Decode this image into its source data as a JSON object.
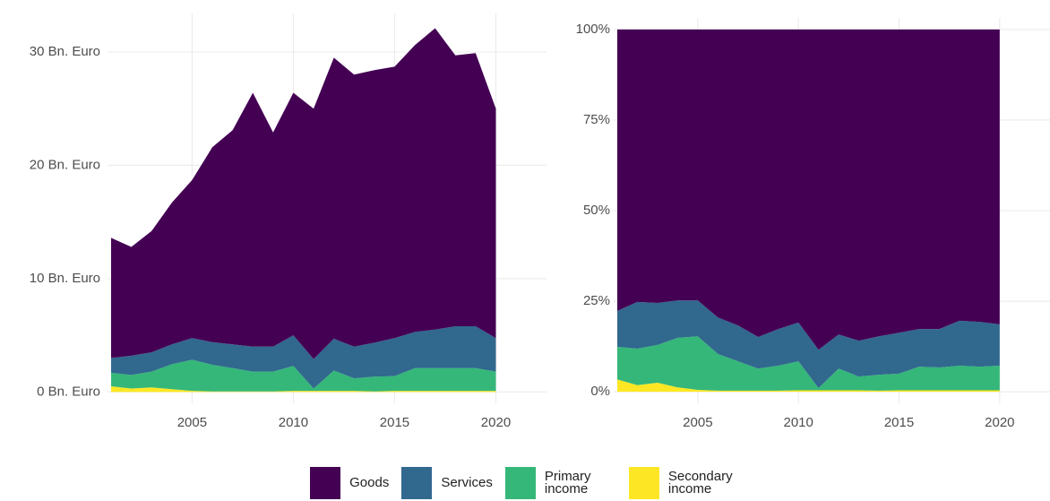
{
  "chart_data": [
    {
      "type": "stacked_area",
      "x": [
        2001,
        2002,
        2003,
        2004,
        2005,
        2006,
        2007,
        2008,
        2009,
        2010,
        2011,
        2012,
        2013,
        2014,
        2015,
        2016,
        2017,
        2018,
        2019,
        2020
      ],
      "series": [
        {
          "name": "Secondary income",
          "color": "#fde725",
          "values": [
            0.5,
            0.3,
            0.4,
            0.25,
            0.1,
            0.05,
            0.05,
            0.05,
            0.05,
            0.1,
            0.1,
            0.1,
            0.1,
            0.05,
            0.1,
            0.1,
            0.1,
            0.1,
            0.1,
            0.1
          ]
        },
        {
          "name": "Primary income",
          "color": "#35b779",
          "values": [
            1.2,
            1.2,
            1.4,
            2.2,
            2.75,
            2.35,
            2.05,
            1.75,
            1.75,
            2.2,
            0.2,
            1.8,
            1.1,
            1.3,
            1.3,
            2.0,
            2.0,
            2.0,
            2.0,
            1.7
          ]
        },
        {
          "name": "Services",
          "color": "#31688e",
          "values": [
            1.3,
            1.7,
            1.7,
            1.75,
            1.9,
            2.0,
            2.1,
            2.2,
            2.2,
            2.7,
            2.6,
            2.8,
            2.8,
            3.0,
            3.35,
            3.2,
            3.4,
            3.7,
            3.7,
            2.95
          ]
        },
        {
          "name": "Goods",
          "color": "#440154",
          "values": [
            10.6,
            9.6,
            10.7,
            12.5,
            13.95,
            17.2,
            18.9,
            22.4,
            18.9,
            21.4,
            22.1,
            24.8,
            24.0,
            24.05,
            23.95,
            25.3,
            26.6,
            23.9,
            24.1,
            20.25
          ]
        }
      ],
      "xlim": [
        2001,
        2022.5
      ],
      "xticks": [
        2005,
        2010,
        2015,
        2020
      ],
      "ylim": [
        -1,
        33.4
      ],
      "yticks": [
        {
          "value": 0,
          "label": "0 Bn. Euro"
        },
        {
          "value": 10,
          "label": "10 Bn. Euro"
        },
        {
          "value": 20,
          "label": "20 Bn. Euro"
        },
        {
          "value": 30,
          "label": "30 Bn. Euro"
        }
      ],
      "grid": true
    },
    {
      "type": "stacked_area",
      "x": [
        2001,
        2002,
        2003,
        2004,
        2005,
        2006,
        2007,
        2008,
        2009,
        2010,
        2011,
        2012,
        2013,
        2014,
        2015,
        2016,
        2017,
        2018,
        2019,
        2020
      ],
      "series": [
        {
          "name": "Secondary income",
          "color": "#fde725",
          "values": [
            3.4,
            1.8,
            2.5,
            1.2,
            0.5,
            0.3,
            0.3,
            0.3,
            0.3,
            0.4,
            0.4,
            0.4,
            0.4,
            0.3,
            0.4,
            0.4,
            0.4,
            0.4,
            0.4,
            0.4
          ]
        },
        {
          "name": "Primary income",
          "color": "#35b779",
          "values": [
            9.0,
            10.1,
            10.4,
            13.7,
            14.8,
            10.1,
            8.1,
            6.1,
            6.9,
            8.0,
            0.6,
            6.0,
            3.8,
            4.4,
            4.6,
            6.5,
            6.3,
            6.8,
            6.5,
            6.8
          ]
        },
        {
          "name": "Services",
          "color": "#31688e",
          "values": [
            9.9,
            12.9,
            11.6,
            10.3,
            9.9,
            10.1,
            9.9,
            8.7,
            10.1,
            10.7,
            10.6,
            9.4,
            9.9,
            10.6,
            11.3,
            10.4,
            10.6,
            12.4,
            12.4,
            11.4
          ]
        },
        {
          "name": "Goods",
          "color": "#440154",
          "values": [
            77.7,
            75.2,
            75.5,
            74.8,
            74.8,
            79.5,
            81.7,
            84.9,
            82.7,
            80.9,
            88.4,
            84.2,
            85.9,
            84.7,
            83.7,
            82.7,
            82.7,
            80.4,
            80.7,
            81.4
          ]
        }
      ],
      "xlim": [
        2001,
        2022.5
      ],
      "xticks": [
        2005,
        2010,
        2015,
        2020
      ],
      "ylim": [
        -3.2,
        103.2
      ],
      "yticks": [
        {
          "value": 0,
          "label": "0%"
        },
        {
          "value": 25,
          "label": "25%"
        },
        {
          "value": 50,
          "label": "50%"
        },
        {
          "value": 75,
          "label": "75%"
        },
        {
          "value": 100,
          "label": "100%"
        }
      ],
      "grid": true
    }
  ]
}
